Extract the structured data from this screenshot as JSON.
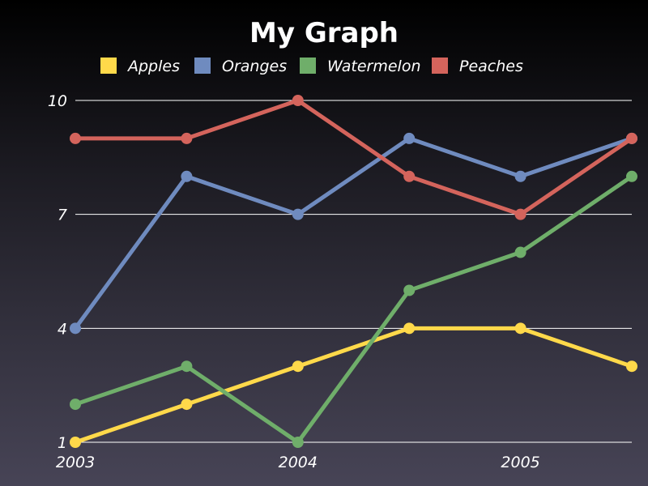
{
  "chart_data": {
    "type": "line",
    "title": "My Graph",
    "xlabel": "",
    "ylabel": "",
    "x": [
      2003,
      2003.5,
      2004,
      2004.5,
      2005,
      2005.5
    ],
    "x_tick_labels": [
      "2003",
      "2004",
      "2005"
    ],
    "x_tick_values": [
      2003,
      2004,
      2005
    ],
    "y_tick_labels": [
      "1",
      "4",
      "7",
      "10"
    ],
    "y_tick_values": [
      1,
      4,
      7,
      10
    ],
    "ylim": [
      1,
      10
    ],
    "xlim": [
      2003,
      2005.5
    ],
    "grid": "horizontal",
    "legend_position": "top",
    "series": [
      {
        "name": "Apples",
        "color": "#ffd94a",
        "values": [
          1,
          2,
          3,
          4,
          4,
          3
        ]
      },
      {
        "name": "Oranges",
        "color": "#6f8bbf",
        "values": [
          4,
          8,
          7,
          9,
          8,
          9
        ]
      },
      {
        "name": "Watermelon",
        "color": "#6fae6a",
        "values": [
          2,
          3,
          1,
          5,
          6,
          8
        ]
      },
      {
        "name": "Peaches",
        "color": "#d4645c",
        "values": [
          9,
          9,
          10,
          8,
          7,
          9
        ]
      }
    ]
  }
}
